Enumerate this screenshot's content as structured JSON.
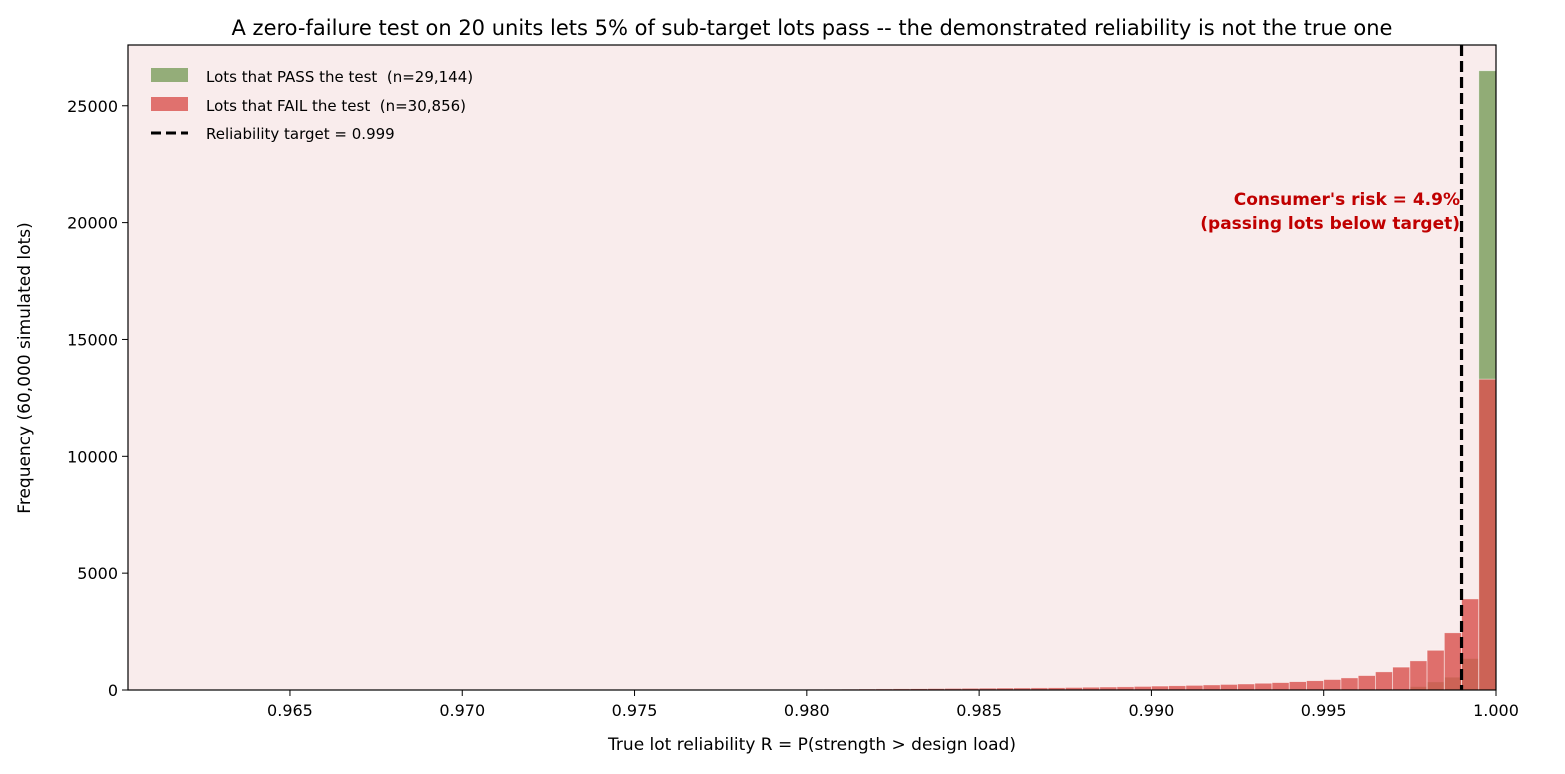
{
  "chart_data": {
    "type": "bar",
    "title": "A zero-failure test on 20 units lets 5% of sub-target lots pass -- the demonstrated reliability is not the true one",
    "xlabel": "True lot reliability  R = P(strength > design load)",
    "ylabel": "Frequency  (60,000 simulated lots)",
    "xlim": [
      0.9603,
      1.0
    ],
    "ylim": [
      0,
      27600
    ],
    "xticks": [
      0.965,
      0.97,
      0.975,
      0.98,
      0.985,
      0.99,
      0.995,
      1.0
    ],
    "xtick_labels": [
      "0.965",
      "0.970",
      "0.975",
      "0.980",
      "0.985",
      "0.990",
      "0.995",
      "1.000"
    ],
    "yticks": [
      0,
      5000,
      10000,
      15000,
      20000,
      25000
    ],
    "ytick_labels": [
      "0",
      "5000",
      "10000",
      "15000",
      "20000",
      "25000"
    ],
    "grid": false,
    "legend_position": "top-left",
    "bin_width": 0.0005,
    "series": [
      {
        "name": "Lots that PASS the test  (n=29,144)",
        "color": "#7a9e5c",
        "x": [
          0.99775,
          0.99825,
          0.99875,
          0.99925,
          0.99975
        ],
        "values": [
          150,
          350,
          550,
          1350,
          26500
        ]
      },
      {
        "name": "Lots that FAIL the test  (n=30,856)",
        "color": "#d9534f",
        "x": [
          0.98025,
          0.98075,
          0.98125,
          0.98175,
          0.98225,
          0.98275,
          0.98325,
          0.98375,
          0.98425,
          0.98475,
          0.98525,
          0.98575,
          0.98625,
          0.98675,
          0.98725,
          0.98775,
          0.98825,
          0.98875,
          0.98925,
          0.98975,
          0.99025,
          0.99075,
          0.99125,
          0.99175,
          0.99225,
          0.99275,
          0.99325,
          0.99375,
          0.99425,
          0.99475,
          0.99525,
          0.99575,
          0.99625,
          0.99675,
          0.99725,
          0.99775,
          0.99825,
          0.99875,
          0.99925,
          0.99975
        ],
        "values": [
          30,
          35,
          40,
          45,
          50,
          55,
          60,
          65,
          70,
          75,
          80,
          85,
          90,
          95,
          100,
          110,
          120,
          130,
          140,
          155,
          170,
          185,
          200,
          220,
          240,
          260,
          290,
          320,
          360,
          400,
          450,
          520,
          620,
          780,
          980,
          1250,
          1700,
          2450,
          3900,
          13300
        ]
      }
    ],
    "reference_line": {
      "label": "Reliability target = 0.999",
      "x": 0.999,
      "style": "dashed",
      "color": "#000000"
    },
    "annotation": {
      "lines": [
        "Consumer's risk = 4.9%",
        "(passing lots below target)"
      ],
      "x": 0.999,
      "y": 20700,
      "color": "#c00000"
    }
  },
  "colors": {
    "plot_background": "#f9ecec",
    "figure_background": "#ffffff",
    "overlap": "#a84a35"
  }
}
